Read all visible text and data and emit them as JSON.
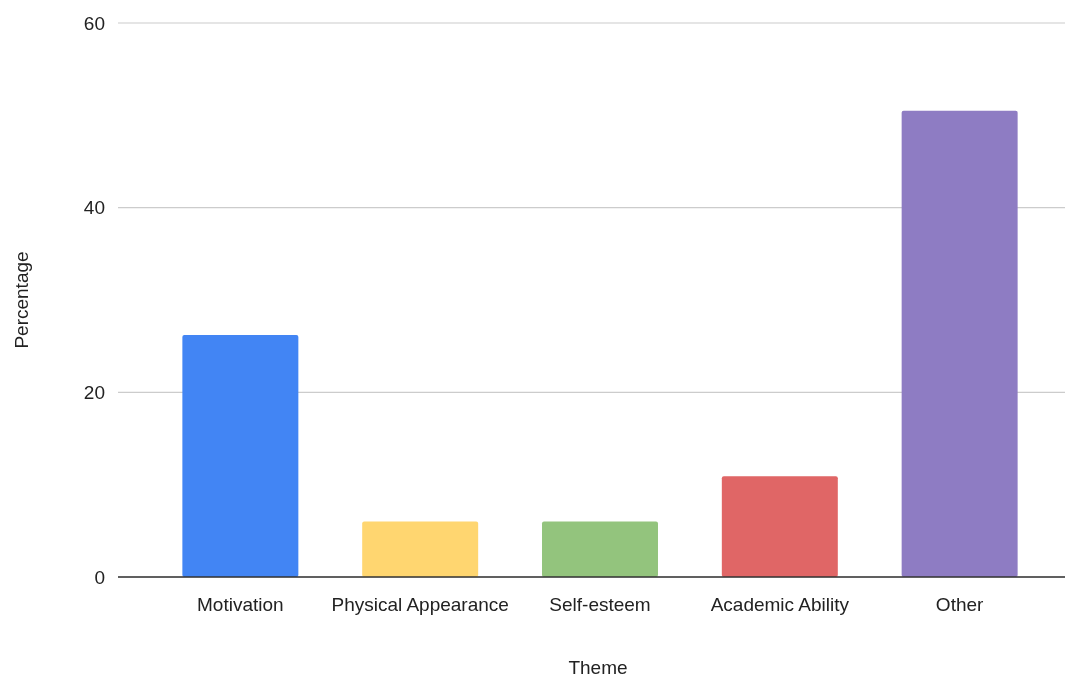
{
  "chart_data": {
    "type": "bar",
    "xlabel": "Theme",
    "ylabel": "Percentage",
    "categories": [
      "Motivation",
      "Physical Appearance",
      "Self-esteem",
      "Academic Ability",
      "Other"
    ],
    "values": [
      26.2,
      6,
      6,
      10.9,
      50.5
    ],
    "colors": [
      "#4285f4",
      "#ffd670",
      "#93c47d",
      "#e06666",
      "#8e7cc3"
    ],
    "ylim": [
      0,
      60
    ],
    "yticks": [
      0,
      20,
      40,
      60
    ],
    "grid": "y"
  }
}
